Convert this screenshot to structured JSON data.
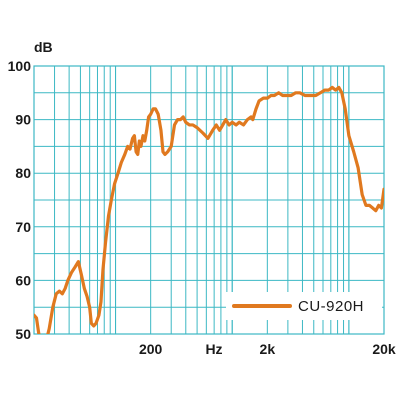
{
  "chart_data": {
    "type": "line",
    "xscale": "log",
    "xlim": [
      20,
      20000
    ],
    "ylim": [
      50,
      100
    ],
    "ylabel": "dB",
    "x_unit_label": "Hz",
    "yticks": [
      {
        "value": 100,
        "label": "100"
      },
      {
        "value": 90,
        "label": "90"
      },
      {
        "value": 80,
        "label": "80"
      },
      {
        "value": 70,
        "label": "70"
      },
      {
        "value": 60,
        "label": "60"
      },
      {
        "value": 50,
        "label": "50"
      }
    ],
    "xticks": [
      {
        "value": 200,
        "label": "200"
      },
      {
        "value": 2000,
        "label": "2k"
      },
      {
        "value": 20000,
        "label": "20k"
      }
    ],
    "grid": true,
    "legend_position": "bottom-right",
    "colors": {
      "grid": "#3cb8c4",
      "series": "#e0791f",
      "text": "#1a1a1a"
    },
    "series": [
      {
        "name": "CU-920H",
        "points": [
          [
            20,
            53.5
          ],
          [
            21,
            53
          ],
          [
            22,
            50
          ],
          [
            25,
            48
          ],
          [
            27,
            51
          ],
          [
            29,
            55
          ],
          [
            31,
            57.5
          ],
          [
            33,
            58
          ],
          [
            35,
            57.5
          ],
          [
            37,
            58.5
          ],
          [
            39,
            60
          ],
          [
            42,
            61.5
          ],
          [
            45,
            62.5
          ],
          [
            48,
            63.5
          ],
          [
            51,
            61
          ],
          [
            54,
            58.5
          ],
          [
            57,
            57
          ],
          [
            60,
            55
          ],
          [
            62,
            52
          ],
          [
            65,
            51.5
          ],
          [
            68,
            52
          ],
          [
            72,
            53.5
          ],
          [
            75,
            56
          ],
          [
            78,
            62
          ],
          [
            82,
            67
          ],
          [
            87,
            72
          ],
          [
            92,
            75
          ],
          [
            98,
            78
          ],
          [
            105,
            80
          ],
          [
            112,
            82
          ],
          [
            120,
            83.5
          ],
          [
            127,
            85
          ],
          [
            133,
            84.5
          ],
          [
            140,
            86.5
          ],
          [
            145,
            87
          ],
          [
            150,
            84
          ],
          [
            155,
            83.5
          ],
          [
            160,
            86
          ],
          [
            165,
            85
          ],
          [
            172,
            87
          ],
          [
            178,
            86
          ],
          [
            185,
            88
          ],
          [
            192,
            90.5
          ],
          [
            200,
            91
          ],
          [
            210,
            92
          ],
          [
            220,
            92
          ],
          [
            232,
            91
          ],
          [
            245,
            88
          ],
          [
            255,
            84
          ],
          [
            265,
            83.5
          ],
          [
            280,
            84
          ],
          [
            300,
            85
          ],
          [
            320,
            89
          ],
          [
            340,
            90
          ],
          [
            360,
            90
          ],
          [
            380,
            90.5
          ],
          [
            400,
            89.5
          ],
          [
            430,
            89
          ],
          [
            460,
            89
          ],
          [
            500,
            88.5
          ],
          [
            560,
            87.5
          ],
          [
            620,
            86.5
          ],
          [
            680,
            88
          ],
          [
            730,
            89
          ],
          [
            780,
            88
          ],
          [
            830,
            89
          ],
          [
            880,
            90
          ],
          [
            940,
            89
          ],
          [
            1000,
            89.5
          ],
          [
            1080,
            89
          ],
          [
            1150,
            89.5
          ],
          [
            1250,
            89
          ],
          [
            1350,
            90
          ],
          [
            1450,
            90.5
          ],
          [
            1500,
            90
          ],
          [
            1600,
            92
          ],
          [
            1700,
            93.5
          ],
          [
            1850,
            94
          ],
          [
            2000,
            94
          ],
          [
            2150,
            94.5
          ],
          [
            2300,
            94.5
          ],
          [
            2500,
            95
          ],
          [
            2700,
            94.5
          ],
          [
            2900,
            94.5
          ],
          [
            3200,
            94.5
          ],
          [
            3500,
            95
          ],
          [
            3800,
            95
          ],
          [
            4200,
            94.5
          ],
          [
            4700,
            94.5
          ],
          [
            5200,
            94.5
          ],
          [
            5700,
            95
          ],
          [
            6200,
            95.5
          ],
          [
            6700,
            95.5
          ],
          [
            7200,
            96
          ],
          [
            7700,
            95.5
          ],
          [
            8200,
            96
          ],
          [
            8700,
            95
          ],
          [
            9300,
            92
          ],
          [
            10000,
            87
          ],
          [
            11000,
            84
          ],
          [
            12000,
            81
          ],
          [
            13000,
            76
          ],
          [
            14000,
            74
          ],
          [
            15000,
            74
          ],
          [
            16000,
            73.5
          ],
          [
            17000,
            73
          ],
          [
            18000,
            74
          ],
          [
            19000,
            73.5
          ],
          [
            20000,
            77
          ]
        ]
      }
    ]
  }
}
